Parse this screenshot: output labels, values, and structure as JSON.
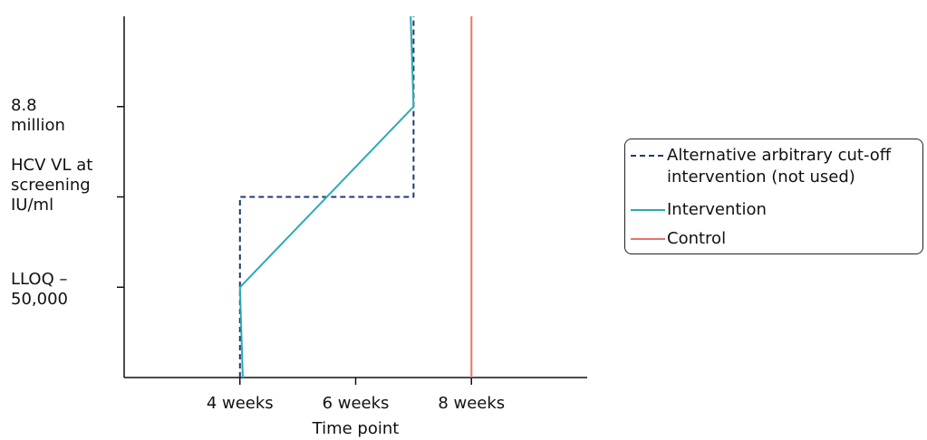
{
  "chart_data": {
    "type": "line",
    "xlabel": "Time point",
    "ylabel": "HCV VL at screening IU/ml",
    "x_ticks": [
      "4 weeks",
      "6 weeks",
      "8 weeks"
    ],
    "y_categories": [
      "LLOQ – 50,000",
      "HCV VL at screening IU/ml",
      "8.8 million"
    ],
    "x_range": [
      2,
      10
    ],
    "y_range": [
      0,
      4
    ],
    "series": [
      {
        "name": "Alternative arbitrary cut-off intervention (not used)",
        "style": "dashed",
        "color": "#1f3a6e",
        "points": [
          [
            4,
            0
          ],
          [
            4,
            2
          ],
          [
            7,
            2
          ],
          [
            7,
            4
          ]
        ]
      },
      {
        "name": "Intervention",
        "style": "solid",
        "color": "#2aabb2",
        "points": [
          [
            4.05,
            0
          ],
          [
            4,
            1
          ],
          [
            7,
            3
          ],
          [
            6.95,
            4
          ]
        ]
      },
      {
        "name": "Control",
        "style": "solid",
        "color": "#e8736c",
        "points": [
          [
            8,
            0
          ],
          [
            8,
            4
          ]
        ]
      }
    ],
    "legend": {
      "position": "right",
      "entries": [
        {
          "label": "Alternative arbitrary cut-off intervention (not used)",
          "style": "dashed",
          "color": "#1f3a6e"
        },
        {
          "label": "Intervention",
          "style": "solid",
          "color": "#2aabb2"
        },
        {
          "label": "Control",
          "style": "solid",
          "color": "#e8736c"
        }
      ]
    },
    "grid": false
  },
  "y_labels": {
    "top": [
      "8.8",
      "million"
    ],
    "middle": [
      "HCV VL at",
      "screening",
      "IU/ml"
    ],
    "bottom": [
      "LLOQ –",
      "50,000"
    ]
  },
  "legend_text": {
    "alt_line1": "Alternative arbitrary cut-off",
    "alt_line2": "intervention (not used)",
    "intervention": "Intervention",
    "control": "Control"
  }
}
